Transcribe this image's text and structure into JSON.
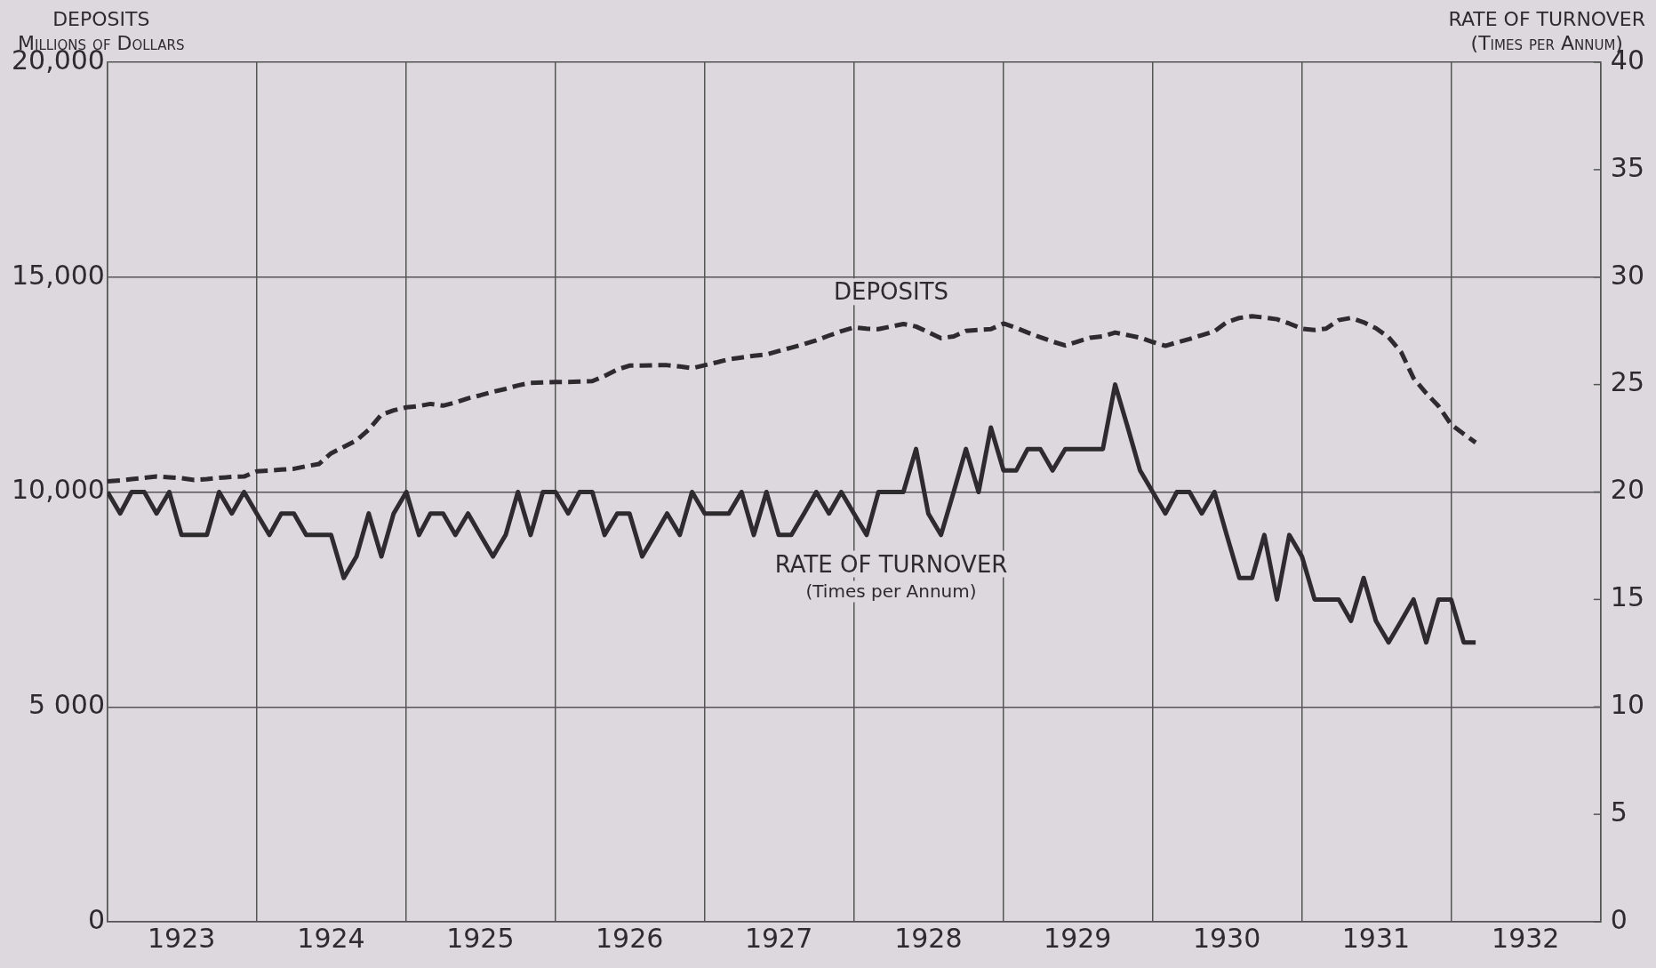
{
  "chart_data": {
    "type": "line",
    "ylabel": "DEPOSITS\nMillions of Dollars",
    "y2label": "RATE OF TURNOVER\n(Times per Annum)",
    "x": [
      "1923-01",
      "1923-02",
      "1923-03",
      "1923-04",
      "1923-05",
      "1923-06",
      "1923-07",
      "1923-08",
      "1923-09",
      "1923-10",
      "1923-11",
      "1923-12",
      "1924-01",
      "1924-02",
      "1924-03",
      "1924-04",
      "1924-05",
      "1924-06",
      "1924-07",
      "1924-08",
      "1924-09",
      "1924-10",
      "1924-11",
      "1924-12",
      "1925-01",
      "1925-02",
      "1925-03",
      "1925-04",
      "1925-05",
      "1925-06",
      "1925-07",
      "1925-08",
      "1925-09",
      "1925-10",
      "1925-11",
      "1925-12",
      "1926-01",
      "1926-02",
      "1926-03",
      "1926-04",
      "1926-05",
      "1926-06",
      "1926-07",
      "1926-08",
      "1926-09",
      "1926-10",
      "1926-11",
      "1926-12",
      "1927-01",
      "1927-02",
      "1927-03",
      "1927-04",
      "1927-05",
      "1927-06",
      "1927-07",
      "1927-08",
      "1927-09",
      "1927-10",
      "1927-11",
      "1927-12",
      "1928-01",
      "1928-02",
      "1928-03",
      "1928-04",
      "1928-05",
      "1928-06",
      "1928-07",
      "1928-08",
      "1928-09",
      "1928-10",
      "1928-11",
      "1928-12",
      "1929-01",
      "1929-02",
      "1929-03",
      "1929-04",
      "1929-05",
      "1929-06",
      "1929-07",
      "1929-08",
      "1929-09",
      "1929-10",
      "1929-11",
      "1929-12",
      "1930-01",
      "1930-02",
      "1930-03",
      "1930-04",
      "1930-05",
      "1930-06",
      "1930-07",
      "1930-08",
      "1930-09",
      "1930-10",
      "1930-11",
      "1930-12",
      "1931-01",
      "1931-02",
      "1931-03",
      "1931-04",
      "1931-05",
      "1931-06",
      "1931-07",
      "1931-08",
      "1931-09",
      "1931-10",
      "1931-11",
      "1931-12",
      "1932-01",
      "1932-02",
      "1932-03"
    ],
    "series": [
      {
        "name": "DEPOSITS",
        "color": "#2e2b2f",
        "line_style": "dashed",
        "values": [
          10250,
          10270,
          10300,
          10330,
          10360,
          10340,
          10320,
          10280,
          10300,
          10330,
          10350,
          10360,
          10480,
          10500,
          10520,
          10540,
          10600,
          10650,
          10900,
          11050,
          11200,
          11450,
          11800,
          11900,
          11970,
          12000,
          12050,
          12010,
          12080,
          12180,
          12250,
          12330,
          12400,
          12480,
          12540,
          12550,
          12560,
          12560,
          12570,
          12580,
          12700,
          12850,
          12940,
          12940,
          12950,
          12950,
          12920,
          12880,
          12950,
          13020,
          13090,
          13130,
          13170,
          13200,
          13280,
          13360,
          13440,
          13530,
          13640,
          13740,
          13830,
          13800,
          13790,
          13850,
          13910,
          13850,
          13720,
          13580,
          13620,
          13750,
          13770,
          13790,
          13920,
          13820,
          13710,
          13600,
          13500,
          13410,
          13500,
          13590,
          13620,
          13710,
          13650,
          13590,
          13490,
          13400,
          13480,
          13560,
          13650,
          13740,
          13950,
          14050,
          14090,
          14060,
          14020,
          13920,
          13800,
          13770,
          13800,
          14000,
          14050,
          13950,
          13810,
          13600,
          13250,
          12650,
          12300,
          12000,
          11570,
          11350,
          11150
        ]
      },
      {
        "name": "RATE OF TURNOVER\n(Times per Annum)",
        "color": "#2e2b2f",
        "line_style": "solid",
        "axis": "y2",
        "values": [
          20,
          19,
          20,
          20,
          19,
          20,
          18,
          18,
          18,
          20,
          19,
          20,
          19,
          18,
          19,
          19,
          18,
          18,
          18,
          16,
          17,
          19,
          17,
          19,
          20,
          18,
          19,
          19,
          18,
          19,
          18,
          17,
          18,
          20,
          18,
          20,
          20,
          19,
          20,
          20,
          18,
          19,
          19,
          17,
          18,
          19,
          18,
          20,
          19,
          19,
          19,
          20,
          18,
          20,
          18,
          18,
          19,
          20,
          19,
          20,
          19,
          18,
          20,
          20,
          20,
          22,
          19,
          18,
          20,
          22,
          20,
          23,
          21,
          21,
          22,
          22,
          21,
          22,
          22,
          22,
          22,
          25,
          23,
          21,
          20,
          19,
          20,
          20,
          19,
          20,
          18,
          16,
          16,
          18,
          15,
          18,
          17,
          15,
          15,
          15,
          14,
          16,
          14,
          13,
          14,
          15,
          13,
          15,
          15,
          13,
          13
        ]
      }
    ],
    "xlim": [
      "1923-01",
      "1933-01"
    ],
    "xticks": [
      {
        "value": "1923-01",
        "label": null
      },
      {
        "value": "1923-07",
        "label": "1923"
      },
      {
        "value": "1924-01",
        "label": null
      },
      {
        "value": "1924-07",
        "label": "1924"
      },
      {
        "value": "1925-01",
        "label": null
      },
      {
        "value": "1925-07",
        "label": "1925"
      },
      {
        "value": "1926-01",
        "label": null
      },
      {
        "value": "1926-07",
        "label": "1926"
      },
      {
        "value": "1927-01",
        "label": null
      },
      {
        "value": "1927-07",
        "label": "1927"
      },
      {
        "value": "1928-01",
        "label": null
      },
      {
        "value": "1928-07",
        "label": "1928"
      },
      {
        "value": "1929-01",
        "label": null
      },
      {
        "value": "1929-07",
        "label": "1929"
      },
      {
        "value": "1930-01",
        "label": null
      },
      {
        "value": "1930-07",
        "label": "1930"
      },
      {
        "value": "1931-01",
        "label": null
      },
      {
        "value": "1931-07",
        "label": "1931"
      },
      {
        "value": "1932-01",
        "label": null
      },
      {
        "value": "1932-07",
        "label": "1932"
      },
      {
        "value": "1933-01",
        "label": null
      }
    ],
    "ylim": [
      0,
      20000
    ],
    "yticks": [
      {
        "value": 0,
        "label": "0"
      },
      {
        "value": 5000,
        "label": "5 000"
      },
      {
        "value": 10000,
        "label": "10,000"
      },
      {
        "value": 15000,
        "label": "15,000"
      },
      {
        "value": 20000,
        "label": "20,000"
      }
    ],
    "y2lim": [
      0,
      40
    ],
    "y2ticks": [
      0,
      5,
      10,
      15,
      20,
      25,
      30,
      35,
      40
    ],
    "grid": true,
    "legend": false,
    "marker": "none"
  }
}
